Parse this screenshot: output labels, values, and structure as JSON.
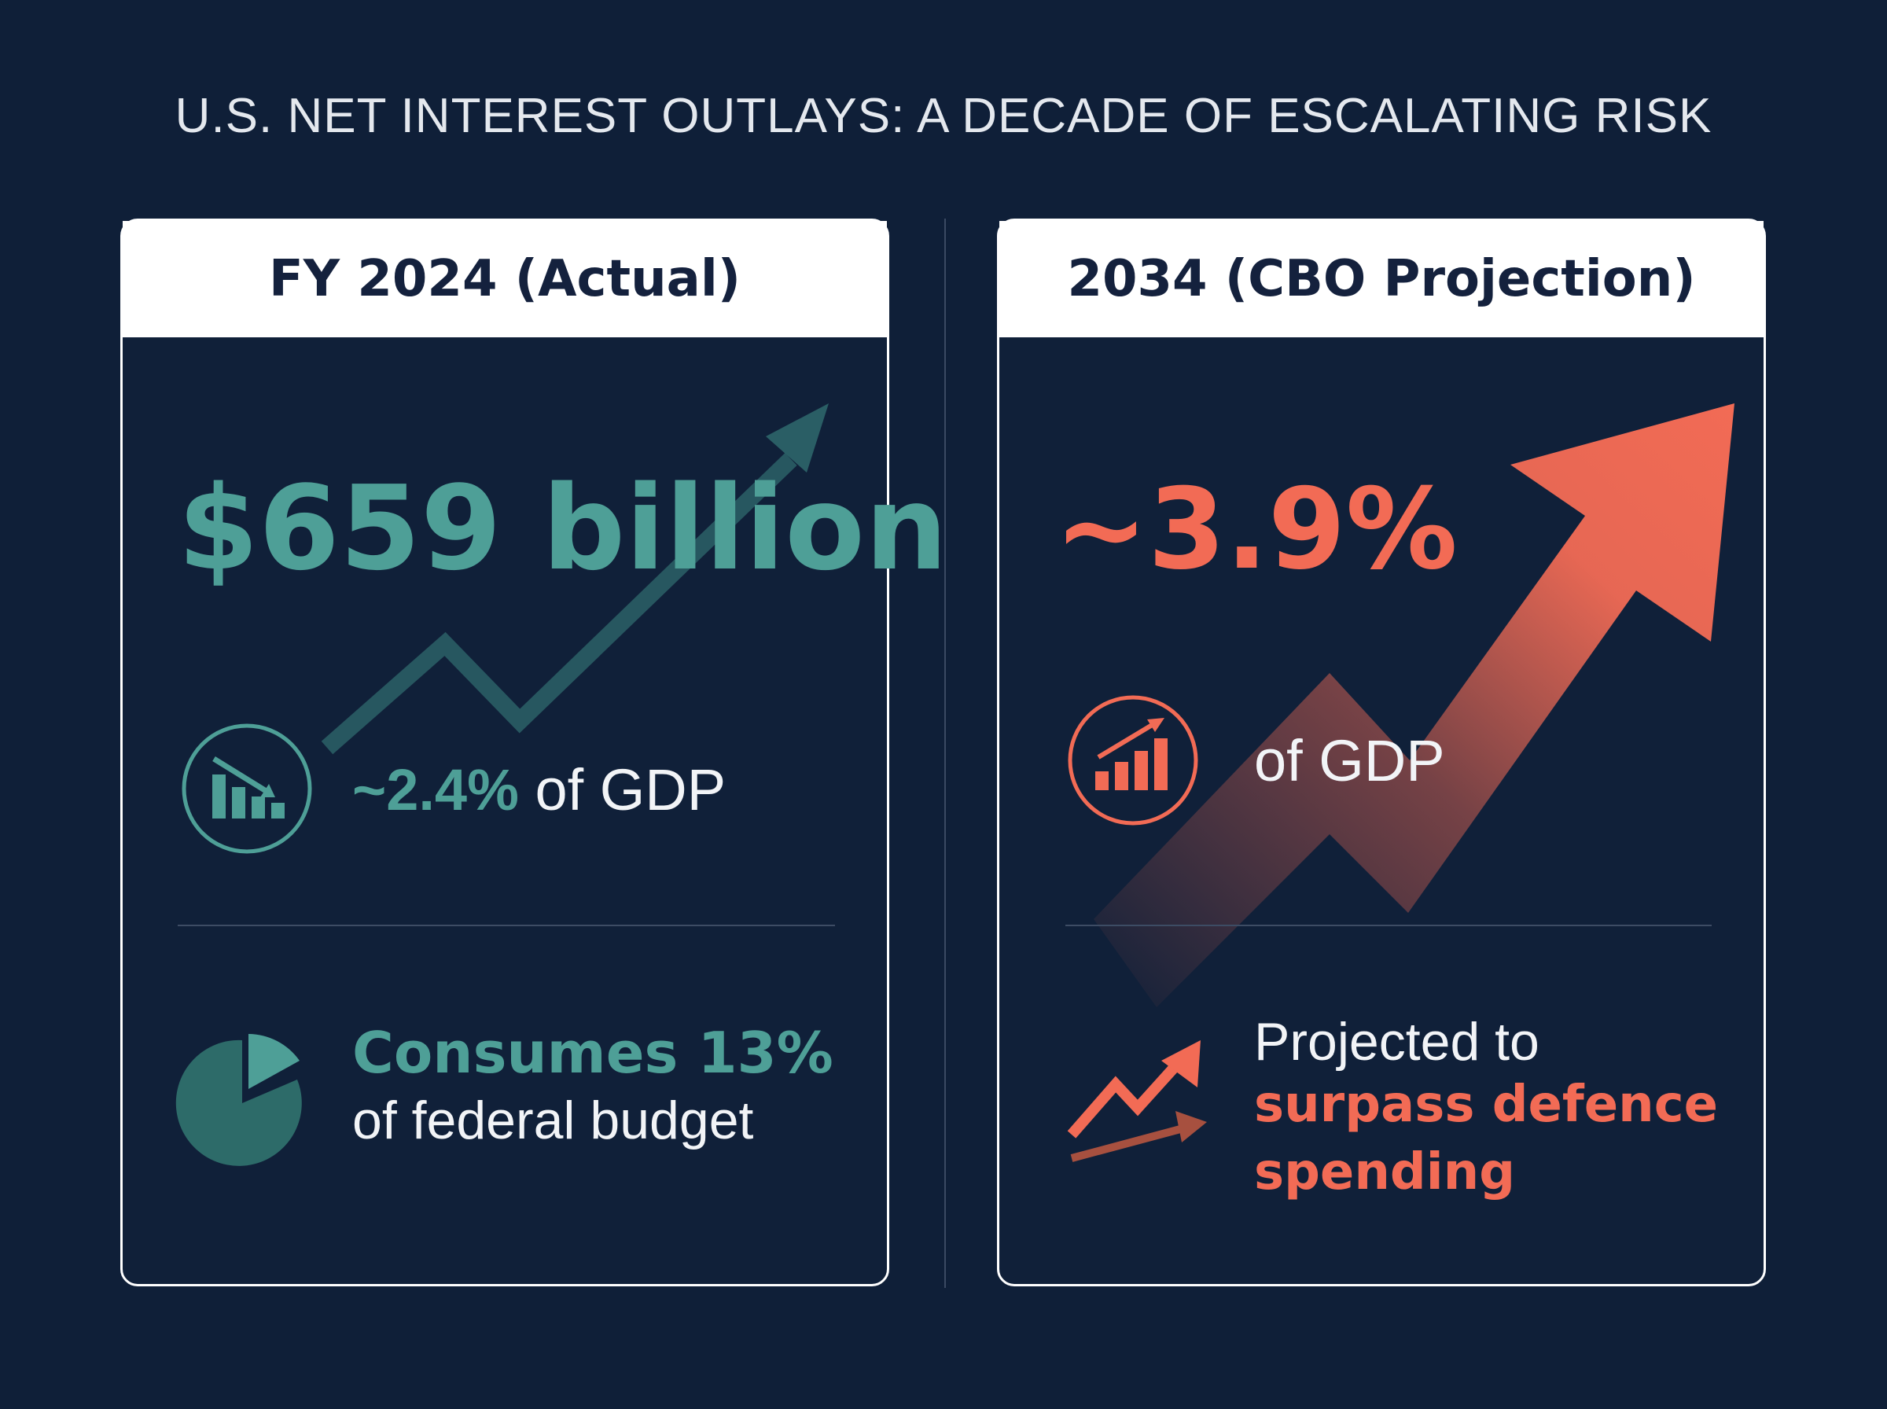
{
  "title": "U.S. NET INTEREST OUTLAYS: A DECADE OF ESCALATING RISK",
  "colors": {
    "background": "#0f1f38",
    "teal": "#4e9f97",
    "coral": "#f26b55",
    "card_header": "#ffffff"
  },
  "left_card": {
    "header": "FY 2024 (Actual)",
    "headline": "$659 billion",
    "gdp_value": "~2.4%",
    "gdp_suffix": "of GDP",
    "gdp_icon": "bar-chart-icon",
    "budget_highlight": "Consumes 13%",
    "budget_text": "of federal budget",
    "budget_icon": "pie-chart-icon"
  },
  "right_card": {
    "header": "2034 (CBO Projection)",
    "headline": "~3.9%",
    "gdp_suffix": "of GDP",
    "gdp_icon": "rising-bar-chart-icon",
    "defence_intro": "Projected to",
    "defence_line1": "surpass defence",
    "defence_line2": "spending",
    "defence_icon": "trend-arrows-icon"
  }
}
